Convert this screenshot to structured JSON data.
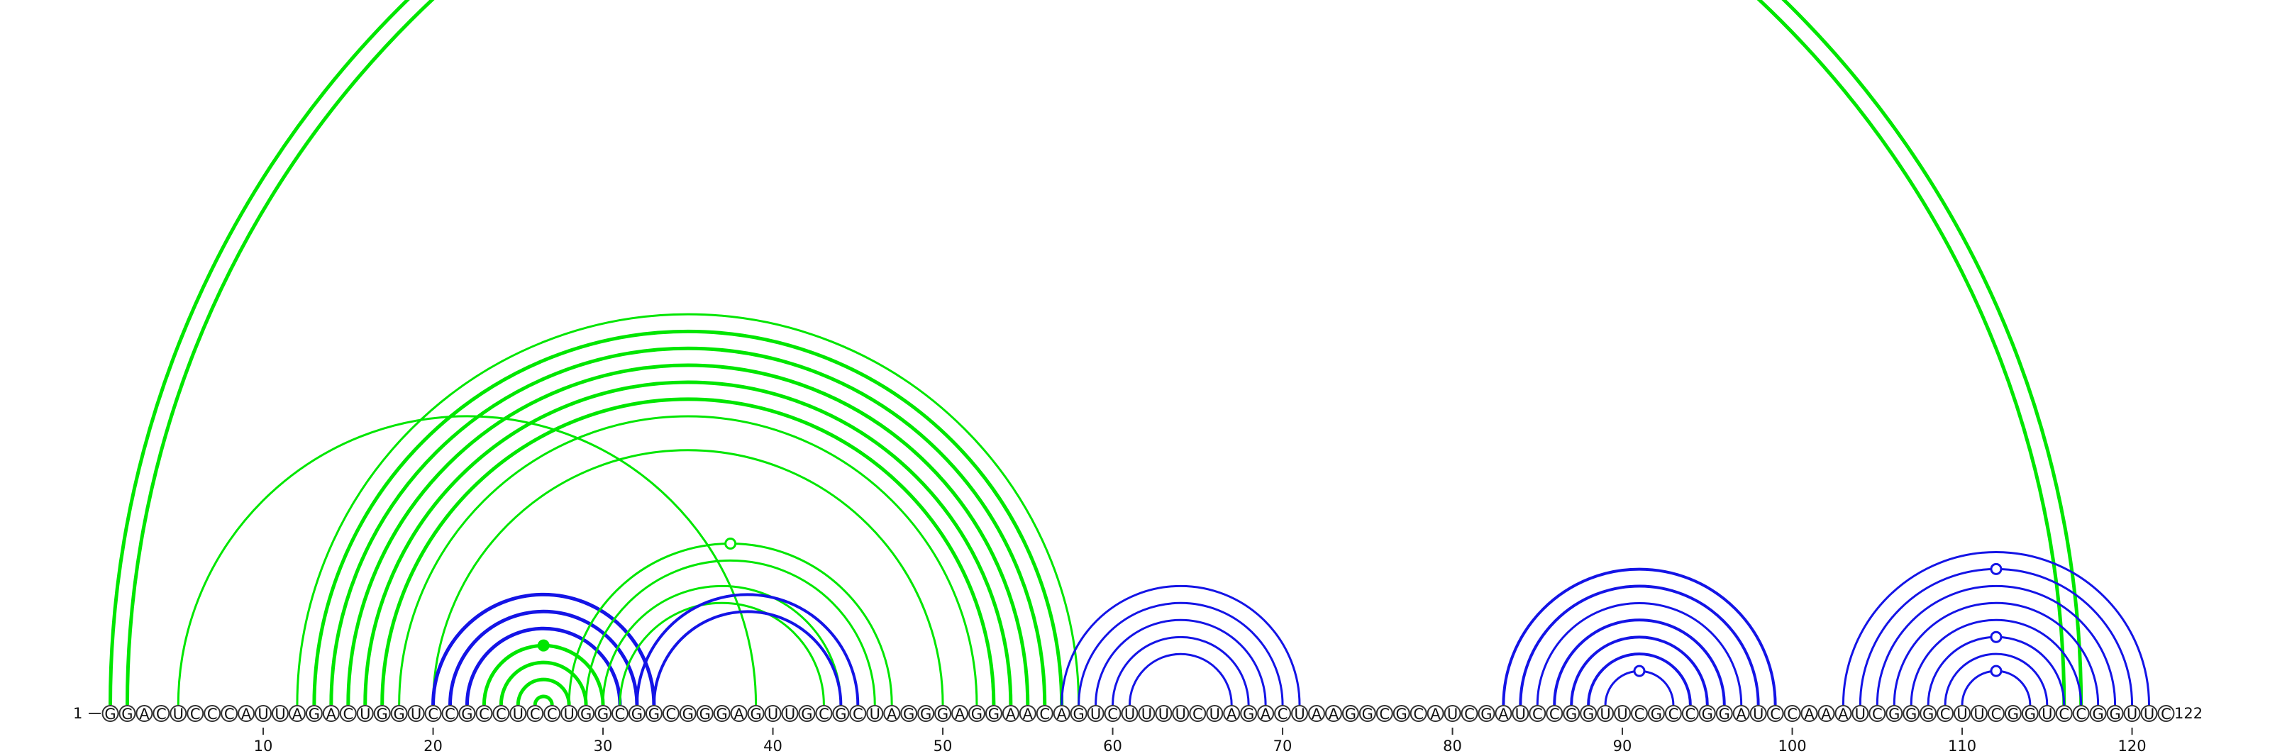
{
  "sequence": "GGACUCCCAUUAGACUGGUCCGCCUCCUGGCGGCGGGAGUUGCGCUAGGGAGGAACAGUCUUUUCUAGACUAAGGCGCAUCGAUCCGGUUCGCCGGAUCCAAAUCGGGCUUCGGUCCGGUUC",
  "start_label": "1",
  "end_label": "122",
  "ticks": [
    "10",
    "20",
    "30",
    "40",
    "50",
    "60",
    "70",
    "80",
    "90",
    "100",
    "110",
    "120"
  ],
  "colors": {
    "green": "#00e600",
    "blue": "#1414e6"
  },
  "arcs": [
    {
      "i": 1,
      "j": 117,
      "color": "green",
      "w": 5
    },
    {
      "i": 2,
      "j": 116,
      "color": "green",
      "w": 5
    },
    {
      "i": 5,
      "j": 39,
      "color": "green",
      "w": 3
    },
    {
      "i": 12,
      "j": 58,
      "color": "green",
      "w": 3
    },
    {
      "i": 13,
      "j": 57,
      "color": "green",
      "w": 5
    },
    {
      "i": 14,
      "j": 56,
      "color": "green",
      "w": 5
    },
    {
      "i": 15,
      "j": 55,
      "color": "green",
      "w": 5
    },
    {
      "i": 16,
      "j": 54,
      "color": "green",
      "w": 5
    },
    {
      "i": 17,
      "j": 53,
      "color": "green",
      "w": 5
    },
    {
      "i": 18,
      "j": 52,
      "color": "green",
      "w": 3
    },
    {
      "i": 20,
      "j": 50,
      "color": "green",
      "w": 3
    },
    {
      "i": 20,
      "j": 33,
      "color": "blue",
      "w": 5
    },
    {
      "i": 21,
      "j": 32,
      "color": "blue",
      "w": 5
    },
    {
      "i": 22,
      "j": 31,
      "color": "blue",
      "w": 5
    },
    {
      "i": 23,
      "j": 30,
      "color": "green",
      "w": 5
    },
    {
      "i": 24,
      "j": 29,
      "color": "green",
      "w": 5
    },
    {
      "i": 25,
      "j": 28,
      "color": "green",
      "w": 5
    },
    {
      "i": 26,
      "j": 27,
      "color": "green",
      "w": 5
    },
    {
      "i": 28,
      "j": 47,
      "color": "green",
      "w": 3
    },
    {
      "i": 29,
      "j": 46,
      "color": "green",
      "w": 3
    },
    {
      "i": 30,
      "j": 44,
      "color": "green",
      "w": 3
    },
    {
      "i": 31,
      "j": 43,
      "color": "green",
      "w": 3
    },
    {
      "i": 32,
      "j": 45,
      "color": "blue",
      "w": 4
    },
    {
      "i": 33,
      "j": 44,
      "color": "blue",
      "w": 4
    },
    {
      "i": 57,
      "j": 71,
      "color": "blue",
      "w": 3
    },
    {
      "i": 58,
      "j": 70,
      "color": "blue",
      "w": 3
    },
    {
      "i": 59,
      "j": 69,
      "color": "blue",
      "w": 3
    },
    {
      "i": 60,
      "j": 68,
      "color": "blue",
      "w": 3
    },
    {
      "i": 61,
      "j": 67,
      "color": "blue",
      "w": 3
    },
    {
      "i": 83,
      "j": 99,
      "color": "blue",
      "w": 4
    },
    {
      "i": 84,
      "j": 98,
      "color": "blue",
      "w": 4
    },
    {
      "i": 85,
      "j": 97,
      "color": "blue",
      "w": 3
    },
    {
      "i": 86,
      "j": 96,
      "color": "blue",
      "w": 4
    },
    {
      "i": 87,
      "j": 95,
      "color": "blue",
      "w": 4
    },
    {
      "i": 88,
      "j": 94,
      "color": "blue",
      "w": 4
    },
    {
      "i": 89,
      "j": 93,
      "color": "blue",
      "w": 3
    },
    {
      "i": 103,
      "j": 121,
      "color": "blue",
      "w": 3
    },
    {
      "i": 104,
      "j": 120,
      "color": "blue",
      "w": 3
    },
    {
      "i": 105,
      "j": 119,
      "color": "blue",
      "w": 3
    },
    {
      "i": 106,
      "j": 118,
      "color": "blue",
      "w": 3
    },
    {
      "i": 107,
      "j": 117,
      "color": "blue",
      "w": 3
    },
    {
      "i": 108,
      "j": 116,
      "color": "blue",
      "w": 3
    },
    {
      "i": 109,
      "j": 115,
      "color": "blue",
      "w": 3
    },
    {
      "i": 110,
      "j": 114,
      "color": "blue",
      "w": 3
    }
  ],
  "markers": [
    {
      "pos": 26.5,
      "arc_of": [
        23,
        30
      ],
      "color": "green",
      "filled": true
    },
    {
      "pos": 37.5,
      "arc_of": [
        28,
        47
      ],
      "color": "green",
      "filled": false
    },
    {
      "pos": 91,
      "arc_of": [
        89,
        93
      ],
      "color": "blue",
      "filled": false
    },
    {
      "pos": 112,
      "arc_of": [
        104,
        120
      ],
      "color": "blue",
      "filled": false
    },
    {
      "pos": 112,
      "arc_of": [
        108,
        116
      ],
      "color": "blue",
      "filled": false
    },
    {
      "pos": 112,
      "arc_of": [
        110,
        114
      ],
      "color": "blue",
      "filled": false
    }
  ]
}
